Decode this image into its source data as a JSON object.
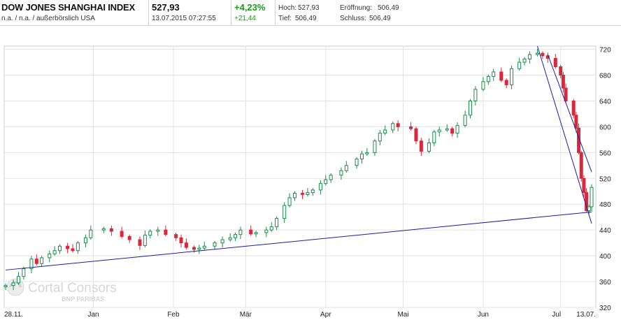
{
  "header": {
    "title": "DOW JONES SHANGHAI INDEX",
    "subtitle": "n.a. / n.a. / außerbörslich USA",
    "price": "527,93",
    "datetime": "13.07.2015 07:27:55",
    "change_pct": "+4,23%",
    "change_abs": "+21,44",
    "high_label": "Hoch:",
    "high_value": "527,93",
    "open_label": "Eröffnung:",
    "open_value": "506,49",
    "low_label": "Tief:",
    "low_value": "506,49",
    "close_label": "Schluss:",
    "close_value": "506,49"
  },
  "watermark": {
    "line1": "Cortal Consors",
    "line2": "BNP PARIBAS"
  },
  "colors": {
    "up": "#1e8a4a",
    "down": "#d8283c",
    "grid": "#e3e3e3",
    "trendline": "#1c1ca6",
    "axis_text": "#222222",
    "positive": "#1a9a1a"
  },
  "chart_data": {
    "type": "candlestick",
    "title": "",
    "xlabel": "",
    "ylabel": "",
    "ylim": [
      320,
      725
    ],
    "yticks": [
      320,
      360,
      400,
      440,
      480,
      520,
      560,
      600,
      640,
      680,
      720
    ],
    "date_range": [
      "2014-11-28",
      "2015-07-13"
    ],
    "xticks": [
      {
        "date": "2014-11-28",
        "label": "28.11."
      },
      {
        "date": "2015-01-01",
        "label": "Jan"
      },
      {
        "date": "2015-02-01",
        "label": "Feb"
      },
      {
        "date": "2015-03-01",
        "label": "Mär"
      },
      {
        "date": "2015-04-01",
        "label": "Apr"
      },
      {
        "date": "2015-05-01",
        "label": "Mai"
      },
      {
        "date": "2015-06-01",
        "label": "Jun"
      },
      {
        "date": "2015-07-01",
        "label": "Jul"
      },
      {
        "date": "2015-07-13",
        "label": "13.07."
      }
    ],
    "close_anchors": [
      [
        "2014-11-28",
        354
      ],
      [
        "2014-12-01",
        358
      ],
      [
        "2014-12-03",
        368
      ],
      [
        "2014-12-05",
        380
      ],
      [
        "2014-12-08",
        395
      ],
      [
        "2014-12-10",
        388
      ],
      [
        "2014-12-12",
        397
      ],
      [
        "2014-12-15",
        403
      ],
      [
        "2014-12-17",
        408
      ],
      [
        "2014-12-19",
        415
      ],
      [
        "2014-12-22",
        411
      ],
      [
        "2014-12-24",
        408
      ],
      [
        "2014-12-26",
        420
      ],
      [
        "2014-12-29",
        428
      ],
      [
        "2014-12-31",
        440
      ],
      [
        "2015-01-05",
        442
      ],
      [
        "2015-01-08",
        438
      ],
      [
        "2015-01-12",
        430
      ],
      [
        "2015-01-15",
        425
      ],
      [
        "2015-01-19",
        416
      ],
      [
        "2015-01-21",
        432
      ],
      [
        "2015-01-23",
        438
      ],
      [
        "2015-01-26",
        440
      ],
      [
        "2015-01-29",
        433
      ],
      [
        "2015-02-02",
        428
      ],
      [
        "2015-02-04",
        420
      ],
      [
        "2015-02-06",
        413
      ],
      [
        "2015-02-09",
        410
      ],
      [
        "2015-02-11",
        412
      ],
      [
        "2015-02-13",
        415
      ],
      [
        "2015-02-17",
        420
      ],
      [
        "2015-02-20",
        425
      ],
      [
        "2015-02-23",
        428
      ],
      [
        "2015-02-25",
        433
      ],
      [
        "2015-02-27",
        440
      ],
      [
        "2015-03-03",
        434
      ],
      [
        "2015-03-05",
        436
      ],
      [
        "2015-03-09",
        440
      ],
      [
        "2015-03-11",
        445
      ],
      [
        "2015-03-13",
        458
      ],
      [
        "2015-03-16",
        478
      ],
      [
        "2015-03-18",
        490
      ],
      [
        "2015-03-20",
        497
      ],
      [
        "2015-03-23",
        495
      ],
      [
        "2015-03-25",
        498
      ],
      [
        "2015-03-27",
        502
      ],
      [
        "2015-03-30",
        512
      ],
      [
        "2015-04-01",
        518
      ],
      [
        "2015-04-03",
        525
      ],
      [
        "2015-04-07",
        532
      ],
      [
        "2015-04-09",
        540
      ],
      [
        "2015-04-13",
        550
      ],
      [
        "2015-04-15",
        558
      ],
      [
        "2015-04-17",
        560
      ],
      [
        "2015-04-20",
        578
      ],
      [
        "2015-04-22",
        590
      ],
      [
        "2015-04-24",
        595
      ],
      [
        "2015-04-27",
        605
      ],
      [
        "2015-04-29",
        600
      ],
      [
        "2015-05-04",
        597
      ],
      [
        "2015-05-06",
        578
      ],
      [
        "2015-05-08",
        562
      ],
      [
        "2015-05-11",
        575
      ],
      [
        "2015-05-13",
        592
      ],
      [
        "2015-05-15",
        595
      ],
      [
        "2015-05-18",
        597
      ],
      [
        "2015-05-20",
        590
      ],
      [
        "2015-05-22",
        602
      ],
      [
        "2015-05-25",
        618
      ],
      [
        "2015-05-27",
        640
      ],
      [
        "2015-05-29",
        658
      ],
      [
        "2015-06-01",
        670
      ],
      [
        "2015-06-03",
        678
      ],
      [
        "2015-06-05",
        685
      ],
      [
        "2015-06-08",
        672
      ],
      [
        "2015-06-10",
        665
      ],
      [
        "2015-06-12",
        690
      ],
      [
        "2015-06-15",
        700
      ],
      [
        "2015-06-17",
        705
      ],
      [
        "2015-06-19",
        712
      ],
      [
        "2015-06-22",
        714
      ],
      [
        "2015-06-24",
        710
      ],
      [
        "2015-06-26",
        706
      ],
      [
        "2015-06-29",
        693
      ],
      [
        "2015-07-01",
        680
      ],
      [
        "2015-07-02",
        660
      ],
      [
        "2015-07-03",
        640
      ],
      [
        "2015-07-06",
        618
      ],
      [
        "2015-07-07",
        598
      ],
      [
        "2015-07-08",
        560
      ],
      [
        "2015-07-09",
        520
      ],
      [
        "2015-07-10",
        498
      ],
      [
        "2015-07-11",
        470
      ],
      [
        "2015-07-12",
        476
      ],
      [
        "2015-07-13",
        506
      ]
    ],
    "trendlines": [
      {
        "from": [
          "2014-11-28",
          378
        ],
        "to": [
          "2015-07-13",
          468
        ]
      },
      {
        "from": [
          "2015-06-22",
          725
        ],
        "to": [
          "2015-07-13",
          450
        ]
      },
      {
        "from": [
          "2015-06-26",
          712
        ],
        "to": [
          "2015-07-13",
          530
        ]
      }
    ]
  }
}
